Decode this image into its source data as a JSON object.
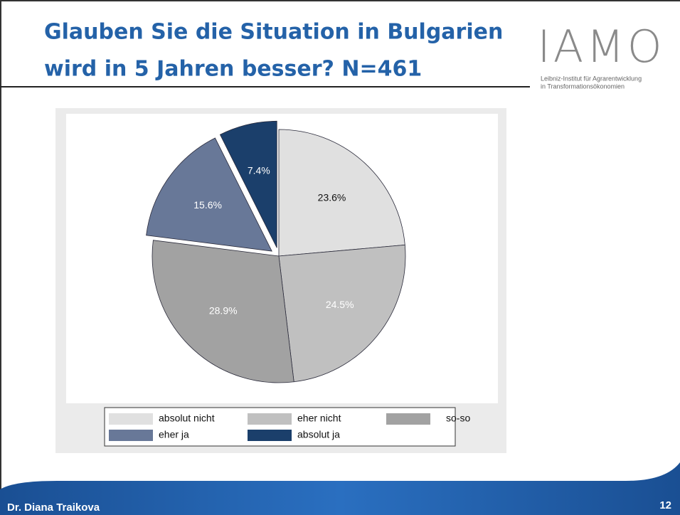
{
  "slide": {
    "title_lines": [
      "Glauben Sie die Situation in Bulgarien",
      "wird in 5 Jahren besser? N=461"
    ],
    "logo": {
      "name": "IAMO",
      "line1": "Leibniz-Institut für Agrarentwicklung",
      "line2": "in Transformationsökonomien"
    },
    "footer": "Dr. Diana Traikova",
    "page": "12"
  },
  "chart_data": {
    "type": "pie",
    "categories": [
      "absolut nicht",
      "eher nicht",
      "so-so",
      "eher ja",
      "absolut ja"
    ],
    "values": [
      23.6,
      24.5,
      28.9,
      15.6,
      7.4
    ],
    "value_labels": [
      "23.6%",
      "24.5%",
      "28.9%",
      "15.6%",
      "7.4%"
    ],
    "colors": [
      "#e0e0e0",
      "#c0c0c0",
      "#a2a2a2",
      "#687898",
      "#1b3f6b"
    ],
    "explode": [
      false,
      false,
      false,
      true,
      true
    ],
    "legend": "bottom"
  }
}
